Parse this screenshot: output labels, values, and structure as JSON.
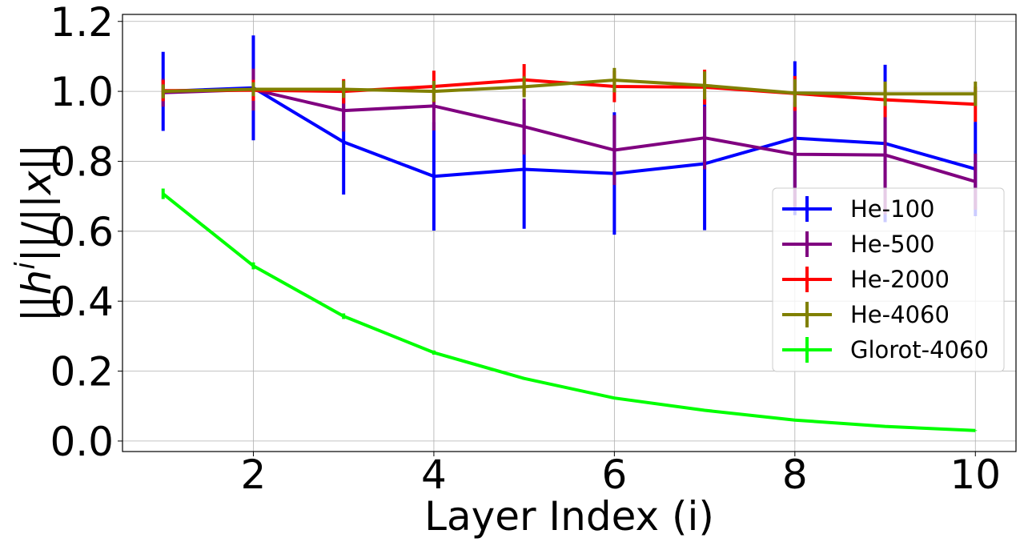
{
  "chart_data": {
    "type": "line",
    "title": "",
    "xlabel": "Layer Index (i)",
    "ylabel": "||h^i||/||x||",
    "ylabel_parts": [
      "||",
      "h",
      "i",
      "||/||",
      "x",
      "||"
    ],
    "xlim": [
      0.55,
      10.45
    ],
    "ylim": [
      -0.03,
      1.22
    ],
    "xticks": [
      2,
      4,
      6,
      8,
      10
    ],
    "xtick_labels": [
      "2",
      "4",
      "6",
      "8",
      "10"
    ],
    "yticks": [
      0.0,
      0.2,
      0.4,
      0.6,
      0.8,
      1.0,
      1.2
    ],
    "ytick_labels": [
      "0.0",
      "0.2",
      "0.4",
      "0.6",
      "0.8",
      "1.0",
      "1.2"
    ],
    "grid": true,
    "legend_position": "center-right",
    "x": [
      1,
      2,
      3,
      4,
      5,
      6,
      7,
      8,
      9,
      10
    ],
    "series": [
      {
        "name": "He-100",
        "color": "#0000ff",
        "values": [
          1.0,
          1.01,
          0.855,
          0.757,
          0.777,
          0.765,
          0.793,
          0.866,
          0.851,
          0.778
        ],
        "errors": [
          0.113,
          0.15,
          0.15,
          0.155,
          0.17,
          0.175,
          0.19,
          0.22,
          0.225,
          0.135
        ]
      },
      {
        "name": "He-500",
        "color": "#800080",
        "values": [
          0.996,
          1.005,
          0.945,
          0.958,
          0.899,
          0.832,
          0.867,
          0.82,
          0.818,
          0.742
        ],
        "errors": [
          0.04,
          0.06,
          0.06,
          0.07,
          0.08,
          0.1,
          0.09,
          0.15,
          0.17,
          0.08
        ]
      },
      {
        "name": "He-2000",
        "color": "#ff0000",
        "values": [
          1.002,
          1.003,
          1.0,
          1.014,
          1.033,
          1.014,
          1.012,
          0.994,
          0.976,
          0.963
        ],
        "errors": [
          0.03,
          0.03,
          0.035,
          0.045,
          0.045,
          0.045,
          0.05,
          0.05,
          0.05,
          0.05
        ]
      },
      {
        "name": "He-4060",
        "color": "#808000",
        "values": [
          1.0,
          1.006,
          1.006,
          1.0,
          1.013,
          1.032,
          1.017,
          0.995,
          0.993,
          0.993
        ],
        "errors": [
          0.02,
          0.02,
          0.025,
          0.03,
          0.03,
          0.035,
          0.04,
          0.04,
          0.035,
          0.035
        ]
      },
      {
        "name": "Glorot-4060",
        "color": "#00ff00",
        "values": [
          0.707,
          0.501,
          0.357,
          0.253,
          0.179,
          0.123,
          0.088,
          0.06,
          0.042,
          0.03
        ],
        "errors": [
          0.015,
          0.01,
          0.008,
          0.006,
          0.004,
          0.003,
          0.002,
          0.002,
          0.001,
          0.001
        ]
      }
    ]
  }
}
